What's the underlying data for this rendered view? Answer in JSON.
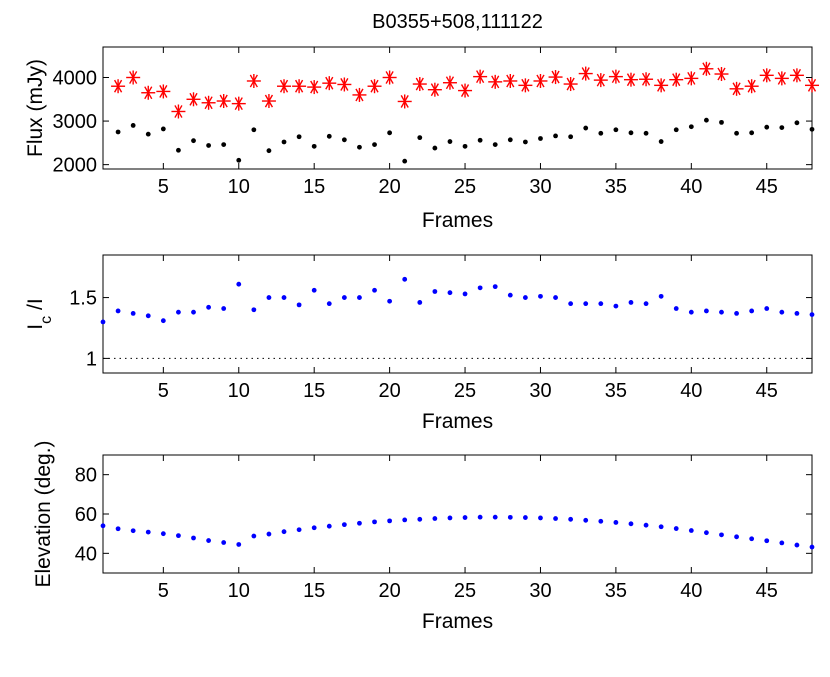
{
  "chart_data": [
    {
      "type": "scatter",
      "title": "B0355+508,111122",
      "xlabel": "Frames",
      "ylabel": "Flux (mJy)",
      "xlim": [
        1,
        48
      ],
      "ylim": [
        1900,
        4700
      ],
      "xticks": [
        5,
        10,
        15,
        20,
        25,
        30,
        35,
        40,
        45
      ],
      "yticks": [
        2000,
        3000,
        4000
      ],
      "series": [
        {
          "marker": "asterisk",
          "color": "#ff0000",
          "x": [
            2,
            3,
            4,
            5,
            6,
            7,
            8,
            9,
            10,
            11,
            12,
            13,
            14,
            15,
            16,
            17,
            18,
            19,
            20,
            21,
            22,
            23,
            24,
            25,
            26,
            27,
            28,
            29,
            30,
            31,
            32,
            33,
            34,
            35,
            36,
            37,
            38,
            39,
            40,
            41,
            42,
            43,
            44,
            45,
            46,
            47,
            48
          ],
          "values": [
            3800,
            4000,
            3650,
            3680,
            3220,
            3500,
            3420,
            3460,
            3400,
            3920,
            3460,
            3800,
            3800,
            3780,
            3870,
            3840,
            3600,
            3800,
            4000,
            3450,
            3850,
            3720,
            3880,
            3700,
            4020,
            3900,
            3920,
            3820,
            3920,
            4010,
            3850,
            4090,
            3940,
            4020,
            3950,
            3960,
            3820,
            3950,
            3980,
            4200,
            4080,
            3740,
            3800,
            4050,
            3980,
            4050,
            3820
          ]
        },
        {
          "marker": "dot",
          "color": "#000000",
          "x": [
            2,
            3,
            4,
            5,
            6,
            7,
            8,
            9,
            10,
            11,
            12,
            13,
            14,
            15,
            16,
            17,
            18,
            19,
            20,
            21,
            22,
            23,
            24,
            25,
            26,
            27,
            28,
            29,
            30,
            31,
            32,
            33,
            34,
            35,
            36,
            37,
            38,
            39,
            40,
            41,
            42,
            43,
            44,
            45,
            46,
            47,
            48
          ],
          "values": [
            2750,
            2900,
            2700,
            2820,
            2330,
            2550,
            2440,
            2460,
            2100,
            2800,
            2320,
            2520,
            2640,
            2420,
            2650,
            2570,
            2400,
            2460,
            2730,
            2080,
            2620,
            2380,
            2530,
            2420,
            2560,
            2460,
            2570,
            2520,
            2600,
            2660,
            2640,
            2840,
            2720,
            2800,
            2730,
            2720,
            2530,
            2800,
            2870,
            3020,
            2970,
            2720,
            2730,
            2860,
            2850,
            2960,
            2810
          ]
        }
      ]
    },
    {
      "type": "scatter",
      "title": "",
      "xlabel": "Frames",
      "ylabel_main": "I",
      "ylabel_sub": "c",
      "ylabel_tail": " /I",
      "xlim": [
        1,
        48
      ],
      "ylim": [
        0.88,
        1.85
      ],
      "xticks": [
        5,
        10,
        15,
        20,
        25,
        30,
        35,
        40,
        45
      ],
      "yticks": [
        1,
        1.5
      ],
      "ytick_labels": [
        "1",
        "1.5"
      ],
      "reference_line": 1,
      "series": [
        {
          "marker": "dot",
          "color": "#0000ff",
          "x": [
            1,
            2,
            3,
            4,
            5,
            6,
            7,
            8,
            9,
            10,
            11,
            12,
            13,
            14,
            15,
            16,
            17,
            18,
            19,
            20,
            21,
            22,
            23,
            24,
            25,
            26,
            27,
            28,
            29,
            30,
            31,
            32,
            33,
            34,
            35,
            36,
            37,
            38,
            39,
            40,
            41,
            42,
            43,
            44,
            45,
            46,
            47,
            48
          ],
          "values": [
            1.3,
            1.39,
            1.37,
            1.35,
            1.31,
            1.38,
            1.38,
            1.42,
            1.41,
            1.61,
            1.4,
            1.5,
            1.5,
            1.44,
            1.56,
            1.45,
            1.5,
            1.5,
            1.56,
            1.47,
            1.65,
            1.46,
            1.55,
            1.54,
            1.53,
            1.58,
            1.59,
            1.52,
            1.5,
            1.51,
            1.5,
            1.45,
            1.45,
            1.45,
            1.43,
            1.46,
            1.45,
            1.51,
            1.41,
            1.38,
            1.39,
            1.38,
            1.37,
            1.39,
            1.41,
            1.38,
            1.37,
            1.36
          ]
        }
      ]
    },
    {
      "type": "scatter",
      "title": "",
      "xlabel": "Frames",
      "ylabel": "Elevation (deg.)",
      "xlim": [
        1,
        48
      ],
      "ylim": [
        30,
        90
      ],
      "xticks": [
        5,
        10,
        15,
        20,
        25,
        30,
        35,
        40,
        45
      ],
      "yticks": [
        40,
        60,
        80
      ],
      "series": [
        {
          "marker": "dot",
          "color": "#0000ff",
          "x": [
            1,
            2,
            3,
            4,
            5,
            6,
            7,
            8,
            9,
            10,
            11,
            12,
            13,
            14,
            15,
            16,
            17,
            18,
            19,
            20,
            21,
            22,
            23,
            24,
            25,
            26,
            27,
            28,
            29,
            30,
            31,
            32,
            33,
            34,
            35,
            36,
            37,
            38,
            39,
            40,
            41,
            42,
            43,
            44,
            45,
            46,
            47,
            48
          ],
          "values": [
            54,
            52.5,
            51.5,
            50.8,
            50,
            49,
            47.8,
            46.5,
            45.5,
            44.5,
            48.8,
            49.8,
            51,
            52,
            53,
            53.8,
            54.6,
            55.3,
            56,
            56.5,
            57,
            57.3,
            57.7,
            58,
            58.2,
            58.4,
            58.4,
            58.3,
            58.2,
            58,
            57.7,
            57.3,
            56.8,
            56.3,
            55.7,
            55,
            54.3,
            53.5,
            52.6,
            51.6,
            50.5,
            49.4,
            48.4,
            47.4,
            46.4,
            45.3,
            44.2,
            43.2
          ]
        }
      ]
    }
  ]
}
